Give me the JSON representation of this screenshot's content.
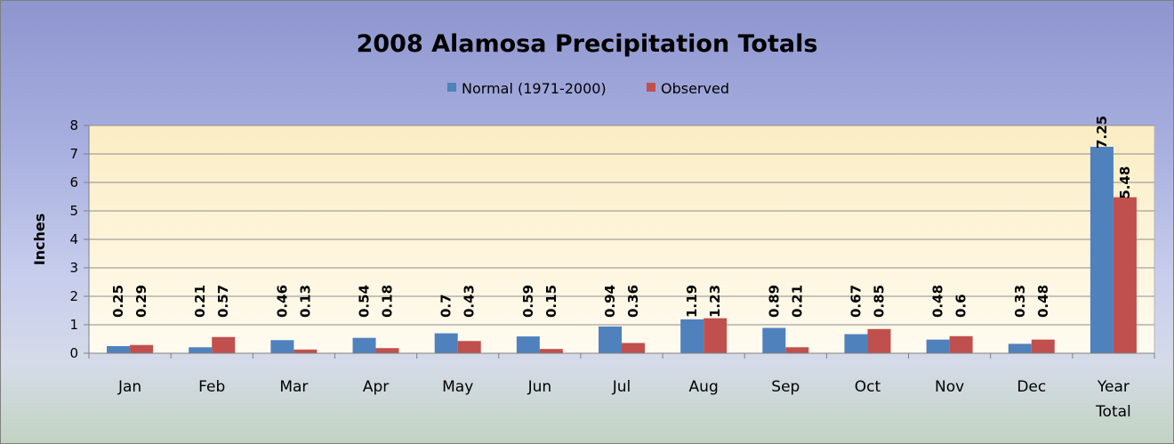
{
  "chart_data": {
    "type": "bar",
    "title": "2008 Alamosa Precipitation Totals",
    "xlabel": "",
    "ylabel": "Inches",
    "ylim": [
      0,
      8
    ],
    "yticks": [
      0,
      1,
      2,
      3,
      4,
      5,
      6,
      7,
      8
    ],
    "grid": true,
    "legend_position": "top",
    "categories": [
      [
        "Jan"
      ],
      [
        "Feb"
      ],
      [
        "Mar"
      ],
      [
        "Apr"
      ],
      [
        "May"
      ],
      [
        "Jun"
      ],
      [
        "Jul"
      ],
      [
        "Aug"
      ],
      [
        "Sep"
      ],
      [
        "Oct"
      ],
      [
        "Nov"
      ],
      [
        "Dec"
      ],
      [
        "Year",
        "Total"
      ]
    ],
    "series": [
      {
        "name": "Normal (1971-2000)",
        "color": "#4f81bd",
        "values": [
          0.25,
          0.21,
          0.46,
          0.54,
          0.7,
          0.59,
          0.94,
          1.19,
          0.89,
          0.67,
          0.48,
          0.33,
          7.25
        ],
        "labels": [
          "0.25",
          "0.21",
          "0.46",
          "0.54",
          "0.7",
          "0.59",
          "0.94",
          "1.19",
          "0.89",
          "0.67",
          "0.48",
          "0.33",
          "7.25"
        ]
      },
      {
        "name": "Observed",
        "color": "#c0504d",
        "values": [
          0.29,
          0.57,
          0.13,
          0.18,
          0.43,
          0.15,
          0.36,
          1.23,
          0.21,
          0.85,
          0.6,
          0.48,
          5.48
        ],
        "labels": [
          "0.29",
          "0.57",
          "0.13",
          "0.18",
          "0.43",
          "0.15",
          "0.36",
          "1.23",
          "0.21",
          "0.85",
          "0.6",
          "0.48",
          "5.48"
        ]
      }
    ],
    "plot_background": "#fdf5d8",
    "gridline_color": "#8c8c8c"
  }
}
